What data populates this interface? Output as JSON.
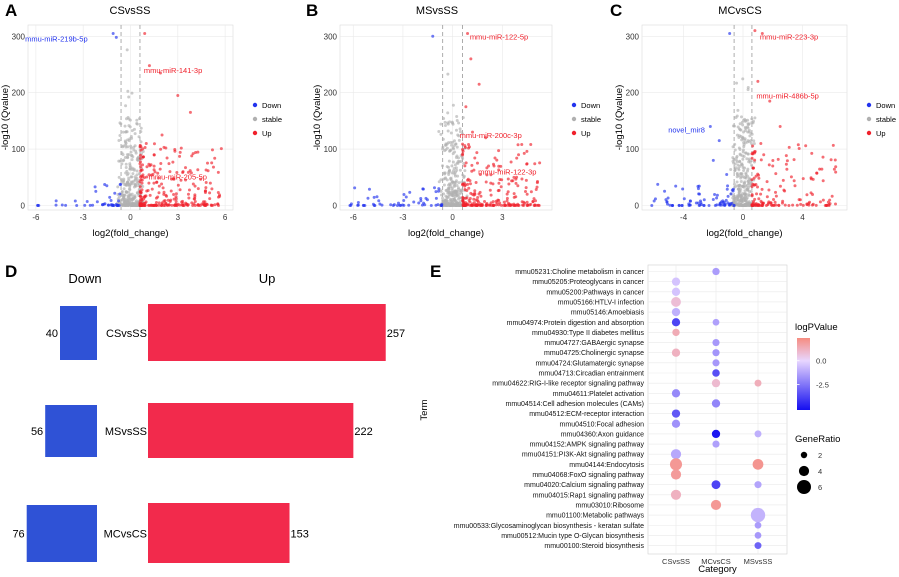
{
  "figure": {
    "colors": {
      "down": "#2233ee",
      "up": "#f0202b",
      "stable": "#b0b0b0",
      "bar_down": "#2f52d6",
      "bar_up": "#f22a4c",
      "grid": "#e9e9e9"
    }
  },
  "chart_data": [
    {
      "type": "scatter",
      "panel": "A",
      "title": "CSvsSS",
      "xlabel": "log2(fold_change)",
      "ylabel": "-log10 (Qvalue)",
      "xlim": [
        -6.5,
        6.5
      ],
      "ylim": [
        -8,
        320
      ],
      "xticks": [
        -6,
        -3,
        0,
        3,
        6
      ],
      "yticks": [
        0,
        100,
        200,
        300
      ],
      "thresholds": {
        "x": [
          -0.6,
          0.6
        ]
      },
      "legend": [
        "Down",
        "stable",
        "Up"
      ],
      "annotations": [
        {
          "label": "mmu-miR-219b-5p",
          "x": -4.7,
          "y": 296,
          "class": "Down"
        },
        {
          "label": "mmu-miR-141-3p",
          "x": 2.7,
          "y": 240,
          "class": "Up"
        },
        {
          "label": "mmu-miR-205-5p",
          "x": 3.0,
          "y": 51,
          "class": "Up"
        }
      ],
      "highlights": [
        {
          "x": -1.1,
          "y": 305,
          "class": "Down"
        },
        {
          "x": -0.9,
          "y": 298,
          "class": "Down"
        },
        {
          "x": 0.9,
          "y": 305,
          "class": "Up"
        },
        {
          "x": 1.2,
          "y": 248,
          "class": "Up"
        },
        {
          "x": 1.9,
          "y": 235,
          "class": "Up"
        },
        {
          "x": 3.0,
          "y": 195,
          "class": "Up"
        },
        {
          "x": 3.8,
          "y": 165,
          "class": "Up"
        },
        {
          "x": 2.0,
          "y": 125,
          "class": "Up"
        },
        {
          "x": 1.0,
          "y": 110,
          "class": "Up"
        },
        {
          "x": 1.5,
          "y": 90,
          "class": "Up"
        },
        {
          "x": 2.5,
          "y": 60,
          "class": "Up"
        },
        {
          "x": 4.3,
          "y": 30,
          "class": "Up"
        },
        {
          "x": -2.2,
          "y": 25,
          "class": "Down"
        },
        {
          "x": -1.5,
          "y": 35,
          "class": "Down"
        },
        {
          "x": -3.5,
          "y": 8,
          "class": "Down"
        }
      ],
      "cloud": {
        "down": 40,
        "up": 257,
        "stable": 320,
        "seed": 11
      }
    },
    {
      "type": "scatter",
      "panel": "B",
      "title": "MSvsSS",
      "xlabel": "log2(fold_change)",
      "ylabel": "-log10 (Qvalue)",
      "xlim": [
        -6.8,
        6.0
      ],
      "ylim": [
        -8,
        320
      ],
      "xticks": [
        -6,
        -3,
        0,
        3
      ],
      "yticks": [
        0,
        100,
        200,
        300
      ],
      "thresholds": {
        "x": [
          -0.6,
          0.6
        ]
      },
      "legend": [
        "Down",
        "stable",
        "Up"
      ],
      "annotations": [
        {
          "label": "mmu-miR-122-5p",
          "x": 2.8,
          "y": 300,
          "class": "Up"
        },
        {
          "label": "mmu-miR-200c-3p",
          "x": 2.3,
          "y": 125,
          "class": "Up"
        },
        {
          "label": "mmu-miR-122-3p",
          "x": 3.3,
          "y": 60,
          "class": "Up"
        }
      ],
      "highlights": [
        {
          "x": 0.9,
          "y": 305,
          "class": "Up"
        },
        {
          "x": 1.1,
          "y": 260,
          "class": "Up"
        },
        {
          "x": 1.6,
          "y": 215,
          "class": "Up"
        },
        {
          "x": 0.8,
          "y": 175,
          "class": "Up"
        },
        {
          "x": 1.2,
          "y": 130,
          "class": "Up"
        },
        {
          "x": 2.0,
          "y": 120,
          "class": "Up"
        },
        {
          "x": 1.5,
          "y": 75,
          "class": "Up"
        },
        {
          "x": 2.5,
          "y": 70,
          "class": "Up"
        },
        {
          "x": 4.5,
          "y": 20,
          "class": "Up"
        },
        {
          "x": -1.2,
          "y": 300,
          "class": "Down"
        },
        {
          "x": -2.8,
          "y": 15,
          "class": "Down"
        }
      ],
      "cloud": {
        "down": 56,
        "up": 222,
        "stable": 320,
        "seed": 23
      }
    },
    {
      "type": "scatter",
      "panel": "C",
      "title": "MCvsCS",
      "xlabel": "log2(fold_change)",
      "ylabel": "-log10 (Qvalue)",
      "xlim": [
        -6.8,
        7.0
      ],
      "ylim": [
        -8,
        320
      ],
      "xticks": [
        -4,
        0,
        4
      ],
      "yticks": [
        0,
        100,
        200,
        300
      ],
      "thresholds": {
        "x": [
          -0.6,
          0.6
        ]
      },
      "legend": [
        "Down",
        "stable",
        "Up"
      ],
      "annotations": [
        {
          "label": "mmu-miR-223-3p",
          "x": 3.1,
          "y": 300,
          "class": "Up"
        },
        {
          "label": "mmu-miR-486b-5p",
          "x": 3.0,
          "y": 195,
          "class": "Up"
        },
        {
          "label": "novel_mir8",
          "x": -3.8,
          "y": 135,
          "class": "Down"
        }
      ],
      "highlights": [
        {
          "x": 0.8,
          "y": 310,
          "class": "Up"
        },
        {
          "x": 1.3,
          "y": 305,
          "class": "Up"
        },
        {
          "x": 1.0,
          "y": 220,
          "class": "Up"
        },
        {
          "x": 1.8,
          "y": 185,
          "class": "Up"
        },
        {
          "x": 2.5,
          "y": 140,
          "class": "Up"
        },
        {
          "x": 1.2,
          "y": 110,
          "class": "Up"
        },
        {
          "x": 2.0,
          "y": 70,
          "class": "Up"
        },
        {
          "x": 3.5,
          "y": 35,
          "class": "Up"
        },
        {
          "x": -0.9,
          "y": 305,
          "class": "Down"
        },
        {
          "x": -2.2,
          "y": 140,
          "class": "Down"
        },
        {
          "x": -1.6,
          "y": 115,
          "class": "Down"
        },
        {
          "x": -2.0,
          "y": 80,
          "class": "Down"
        },
        {
          "x": -1.1,
          "y": 55,
          "class": "Down"
        },
        {
          "x": -3.0,
          "y": 30,
          "class": "Down"
        }
      ],
      "cloud": {
        "down": 76,
        "up": 153,
        "stable": 320,
        "seed": 37
      }
    },
    {
      "type": "bar",
      "panel": "D",
      "headers": {
        "down": "Down",
        "up": "Up"
      },
      "categories": [
        "CSvsSS",
        "MSvsSS",
        "MCvsCS"
      ],
      "series": [
        {
          "name": "Down",
          "values": [
            40,
            56,
            76
          ]
        },
        {
          "name": "Up",
          "values": [
            257,
            222,
            153
          ]
        }
      ],
      "labels": {
        "down": [
          "40",
          "56",
          "76"
        ],
        "up": [
          "257",
          "222",
          "153"
        ]
      }
    },
    {
      "type": "scatter",
      "panel": "E",
      "subtype": "dot-plot",
      "xlabel": "Category",
      "ylabel": "Term",
      "categories": [
        "CSvsSS",
        "MCvsCS",
        "MSvsSS"
      ],
      "terms": [
        "mmu05231:Choline metabolism in cancer",
        "mmu05205:Proteoglycans in cancer",
        "mmu05200:Pathways in cancer",
        "mmu05166:HTLV-I infection",
        "mmu05146:Amoebiasis",
        "mmu04974:Protein digestion and absorption",
        "mmu04930:Type II diabetes mellitus",
        "mmu04727:GABAergic synapse",
        "mmu04725:Cholinergic synapse",
        "mmu04724:Glutamatergic synapse",
        "mmu04713:Circadian entrainment",
        "mmu04622:RIG-I-like receptor signaling pathway",
        "mmu04611:Platelet activation",
        "mmu04514:Cell adhesion molecules (CAMs)",
        "mmu04512:ECM-receptor interaction",
        "mmu04510:Focal adhesion",
        "mmu04360:Axon guidance",
        "mmu04152:AMPK signaling pathway",
        "mmu04151:PI3K-Akt signaling pathway",
        "mmu04144:Endocytosis",
        "mmu04068:FoxO signaling pathway",
        "mmu04020:Calcium signaling pathway",
        "mmu04015:Rap1 signaling pathway",
        "mmu03010:Ribosome",
        "mmu01100:Metabolic pathways",
        "mmu00533:Glycosaminoglycan biosynthesis - keratan sulfate",
        "mmu00512:Mucin type O-Glycan biosynthesis",
        "mmu00100:Steroid biosynthesis"
      ],
      "points": [
        {
          "term": 0,
          "cat": 1,
          "logP": -1.5,
          "ratio": 2.5
        },
        {
          "term": 1,
          "cat": 0,
          "logP": -0.5,
          "ratio": 3
        },
        {
          "term": 2,
          "cat": 0,
          "logP": -0.5,
          "ratio": 3
        },
        {
          "term": 3,
          "cat": 0,
          "logP": 0.8,
          "ratio": 3.8
        },
        {
          "term": 4,
          "cat": 0,
          "logP": -1.0,
          "ratio": 3
        },
        {
          "term": 5,
          "cat": 0,
          "logP": -3.8,
          "ratio": 3
        },
        {
          "term": 5,
          "cat": 1,
          "logP": -1.4,
          "ratio": 2.2
        },
        {
          "term": 6,
          "cat": 0,
          "logP": 1.4,
          "ratio": 2.5
        },
        {
          "term": 7,
          "cat": 1,
          "logP": -1.6,
          "ratio": 2.4
        },
        {
          "term": 8,
          "cat": 0,
          "logP": 1.2,
          "ratio": 3
        },
        {
          "term": 8,
          "cat": 1,
          "logP": -1.7,
          "ratio": 2.4
        },
        {
          "term": 9,
          "cat": 1,
          "logP": -1.6,
          "ratio": 2.4
        },
        {
          "term": 10,
          "cat": 1,
          "logP": -3.5,
          "ratio": 2.6
        },
        {
          "term": 11,
          "cat": 1,
          "logP": 0.9,
          "ratio": 3
        },
        {
          "term": 11,
          "cat": 2,
          "logP": 1.3,
          "ratio": 2.3
        },
        {
          "term": 12,
          "cat": 0,
          "logP": -2.0,
          "ratio": 3
        },
        {
          "term": 13,
          "cat": 1,
          "logP": -2.1,
          "ratio": 3
        },
        {
          "term": 14,
          "cat": 0,
          "logP": -3.3,
          "ratio": 3
        },
        {
          "term": 15,
          "cat": 0,
          "logP": -1.8,
          "ratio": 3
        },
        {
          "term": 16,
          "cat": 1,
          "logP": -5.0,
          "ratio": 3
        },
        {
          "term": 16,
          "cat": 2,
          "logP": -1.0,
          "ratio": 2.3
        },
        {
          "term": 17,
          "cat": 1,
          "logP": -1.4,
          "ratio": 2.4
        },
        {
          "term": 18,
          "cat": 0,
          "logP": -1.2,
          "ratio": 4
        },
        {
          "term": 19,
          "cat": 0,
          "logP": 2.0,
          "ratio": 5
        },
        {
          "term": 19,
          "cat": 2,
          "logP": 2.1,
          "ratio": 4.3
        },
        {
          "term": 20,
          "cat": 0,
          "logP": 1.9,
          "ratio": 4
        },
        {
          "term": 21,
          "cat": 1,
          "logP": -3.8,
          "ratio": 3.3
        },
        {
          "term": 21,
          "cat": 2,
          "logP": -1.3,
          "ratio": 2.4
        },
        {
          "term": 22,
          "cat": 0,
          "logP": 1.2,
          "ratio": 4
        },
        {
          "term": 23,
          "cat": 1,
          "logP": 2.0,
          "ratio": 4
        },
        {
          "term": 24,
          "cat": 2,
          "logP": -0.9,
          "ratio": 6.2
        },
        {
          "term": 25,
          "cat": 2,
          "logP": -1.5,
          "ratio": 2.2
        },
        {
          "term": 26,
          "cat": 2,
          "logP": -1.6,
          "ratio": 2.2
        },
        {
          "term": 27,
          "cat": 2,
          "logP": -3.0,
          "ratio": 2.3
        }
      ],
      "color_legend": {
        "title": "logPValue",
        "ticks": [
          0.0,
          -2.5
        ],
        "tick_labels": [
          "0.0",
          "-2.5"
        ],
        "range": [
          -5.2,
          2.4
        ]
      },
      "size_legend": {
        "title": "GeneRatio",
        "ticks": [
          2,
          4,
          6
        ],
        "tick_labels": [
          "2",
          "4",
          "6"
        ]
      }
    }
  ]
}
